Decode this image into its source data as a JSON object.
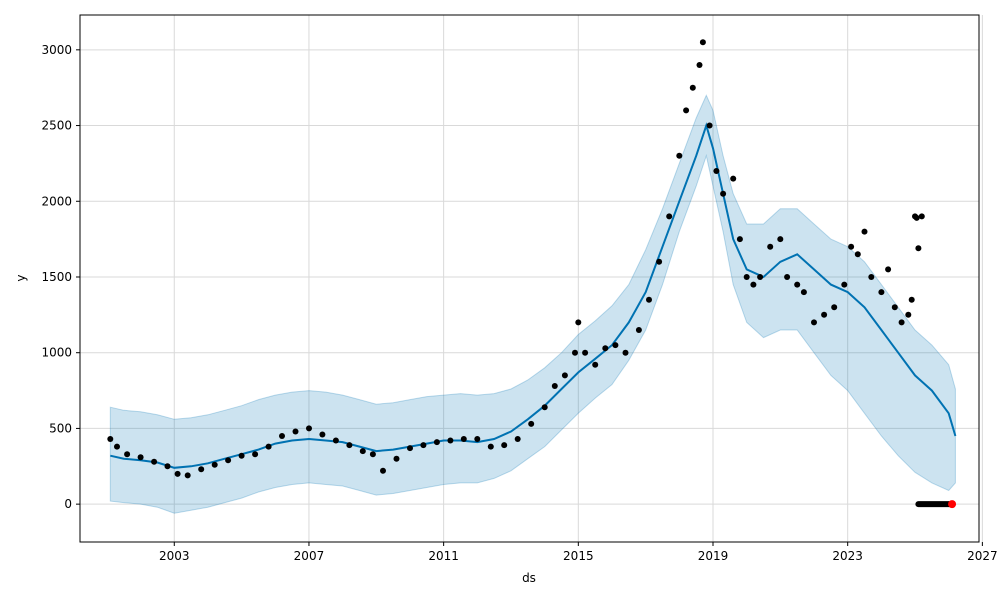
{
  "chart_data": {
    "type": "line",
    "title": "",
    "xlabel": "ds",
    "ylabel": "y",
    "xlim": [
      2000.2,
      2026.9
    ],
    "ylim": [
      -250,
      3230
    ],
    "grid": true,
    "x_ticks": [
      2003,
      2007,
      2011,
      2015,
      2019,
      2023,
      2027
    ],
    "x_tick_labels": [
      "2003",
      "2007",
      "2011",
      "2015",
      "2019",
      "2023",
      "2027"
    ],
    "y_ticks": [
      0,
      500,
      1000,
      1500,
      2000,
      2500,
      3000
    ],
    "y_tick_labels": [
      "0",
      "500",
      "1000",
      "1500",
      "2000",
      "2500",
      "3000"
    ],
    "colors": {
      "observed": "#000000",
      "forecast": "#0072B2",
      "interval": "#0072B2",
      "highlight": "#ff0000",
      "grid": "#d9d9d9"
    },
    "forecast": {
      "x": [
        2001.1,
        2001.5,
        2002.0,
        2002.5,
        2003.0,
        2003.5,
        2004.0,
        2004.5,
        2005.0,
        2005.5,
        2006.0,
        2006.5,
        2007.0,
        2007.5,
        2008.0,
        2008.5,
        2009.0,
        2009.5,
        2010.0,
        2010.5,
        2011.0,
        2011.5,
        2012.0,
        2012.5,
        2013.0,
        2013.5,
        2014.0,
        2014.5,
        2015.0,
        2015.5,
        2016.0,
        2016.5,
        2017.0,
        2017.5,
        2018.0,
        2018.5,
        2018.8,
        2019.0,
        2019.3,
        2019.6,
        2020.0,
        2020.5,
        2021.0,
        2021.5,
        2022.0,
        2022.5,
        2023.0,
        2023.5,
        2024.0,
        2024.5,
        2025.0,
        2025.5,
        2026.0,
        2026.2
      ],
      "yhat": [
        320,
        300,
        290,
        275,
        240,
        250,
        270,
        300,
        330,
        360,
        400,
        420,
        430,
        420,
        410,
        380,
        350,
        360,
        380,
        400,
        420,
        420,
        410,
        430,
        480,
        560,
        650,
        760,
        870,
        960,
        1050,
        1200,
        1400,
        1700,
        2000,
        2300,
        2500,
        2350,
        2050,
        1750,
        1550,
        1500,
        1600,
        1650,
        1550,
        1450,
        1400,
        1300,
        1150,
        1000,
        850,
        750,
        600,
        450
      ],
      "lower": [
        20,
        10,
        0,
        -20,
        -60,
        -40,
        -20,
        10,
        40,
        80,
        110,
        130,
        140,
        130,
        120,
        90,
        60,
        70,
        90,
        110,
        130,
        140,
        140,
        170,
        220,
        300,
        380,
        490,
        600,
        700,
        790,
        950,
        1150,
        1450,
        1800,
        2100,
        2300,
        2100,
        1800,
        1450,
        1200,
        1100,
        1150,
        1150,
        1000,
        850,
        750,
        600,
        450,
        320,
        210,
        140,
        90,
        140
      ],
      "upper": [
        640,
        620,
        610,
        590,
        560,
        570,
        590,
        620,
        650,
        690,
        720,
        740,
        750,
        740,
        720,
        690,
        660,
        670,
        690,
        710,
        720,
        730,
        720,
        730,
        760,
        820,
        900,
        1000,
        1120,
        1210,
        1310,
        1450,
        1680,
        1950,
        2250,
        2550,
        2700,
        2600,
        2300,
        2050,
        1850,
        1850,
        1950,
        1950,
        1850,
        1750,
        1700,
        1600,
        1450,
        1300,
        1150,
        1050,
        920,
        760
      ]
    },
    "observed": {
      "x": [
        2001.1,
        2001.3,
        2001.6,
        2002.0,
        2002.4,
        2002.8,
        2003.1,
        2003.4,
        2003.8,
        2004.2,
        2004.6,
        2005.0,
        2005.4,
        2005.8,
        2006.2,
        2006.6,
        2007.0,
        2007.4,
        2007.8,
        2008.2,
        2008.6,
        2008.9,
        2009.2,
        2009.6,
        2010.0,
        2010.4,
        2010.8,
        2011.2,
        2011.6,
        2012.0,
        2012.4,
        2012.8,
        2013.2,
        2013.6,
        2014.0,
        2014.3,
        2014.6,
        2014.9,
        2015.0,
        2015.2,
        2015.5,
        2015.8,
        2016.1,
        2016.4,
        2016.8,
        2017.1,
        2017.4,
        2017.7,
        2018.0,
        2018.2,
        2018.4,
        2018.6,
        2018.7,
        2018.9,
        2019.1,
        2019.3,
        2019.6,
        2019.8,
        2020.0,
        2020.2,
        2020.4,
        2020.7,
        2021.0,
        2021.2,
        2021.5,
        2021.7,
        2022.0,
        2022.3,
        2022.6,
        2022.9,
        2023.1,
        2023.3,
        2023.5,
        2023.7,
        2024.0,
        2024.2,
        2024.4,
        2024.6,
        2024.8,
        2024.9,
        2025.0,
        2025.05,
        2025.1,
        2025.2
      ],
      "y": [
        430,
        380,
        330,
        310,
        280,
        250,
        200,
        190,
        230,
        260,
        290,
        320,
        330,
        380,
        450,
        480,
        500,
        460,
        420,
        390,
        350,
        330,
        220,
        300,
        370,
        390,
        410,
        420,
        430,
        430,
        380,
        390,
        430,
        530,
        640,
        780,
        850,
        1000,
        1200,
        1000,
        920,
        1030,
        1050,
        1000,
        1150,
        1350,
        1600,
        1900,
        2300,
        2600,
        2750,
        2900,
        3050,
        2500,
        2200,
        2050,
        2150,
        1750,
        1500,
        1450,
        1500,
        1700,
        1750,
        1500,
        1450,
        1400,
        1200,
        1250,
        1300,
        1450,
        1700,
        1650,
        1800,
        1500,
        1400,
        1550,
        1300,
        1200,
        1250,
        1350,
        1900,
        1890,
        1690,
        1900
      ]
    },
    "future_points": {
      "x_range": [
        2025.1,
        2026.1
      ],
      "y": 0,
      "highlight_x": 2026.1
    }
  }
}
